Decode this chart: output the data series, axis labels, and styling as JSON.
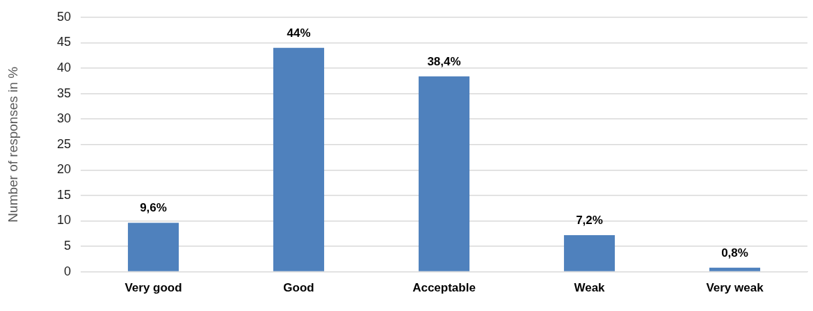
{
  "chart_data": {
    "type": "bar",
    "ylabel": "Number of responses in %",
    "categories": [
      "Very good",
      "Good",
      "Acceptable",
      "Weak",
      "Very weak"
    ],
    "values": [
      9.6,
      44,
      38.4,
      7.2,
      0.8
    ],
    "value_labels": [
      "9,6%",
      "44%",
      "38,4%",
      "7,2%",
      "0,8%"
    ],
    "color": "#4f81bd",
    "ylim": [
      0,
      50
    ],
    "yticks": [
      0,
      5,
      10,
      15,
      20,
      25,
      30,
      35,
      40,
      45,
      50
    ],
    "grid": "y"
  }
}
